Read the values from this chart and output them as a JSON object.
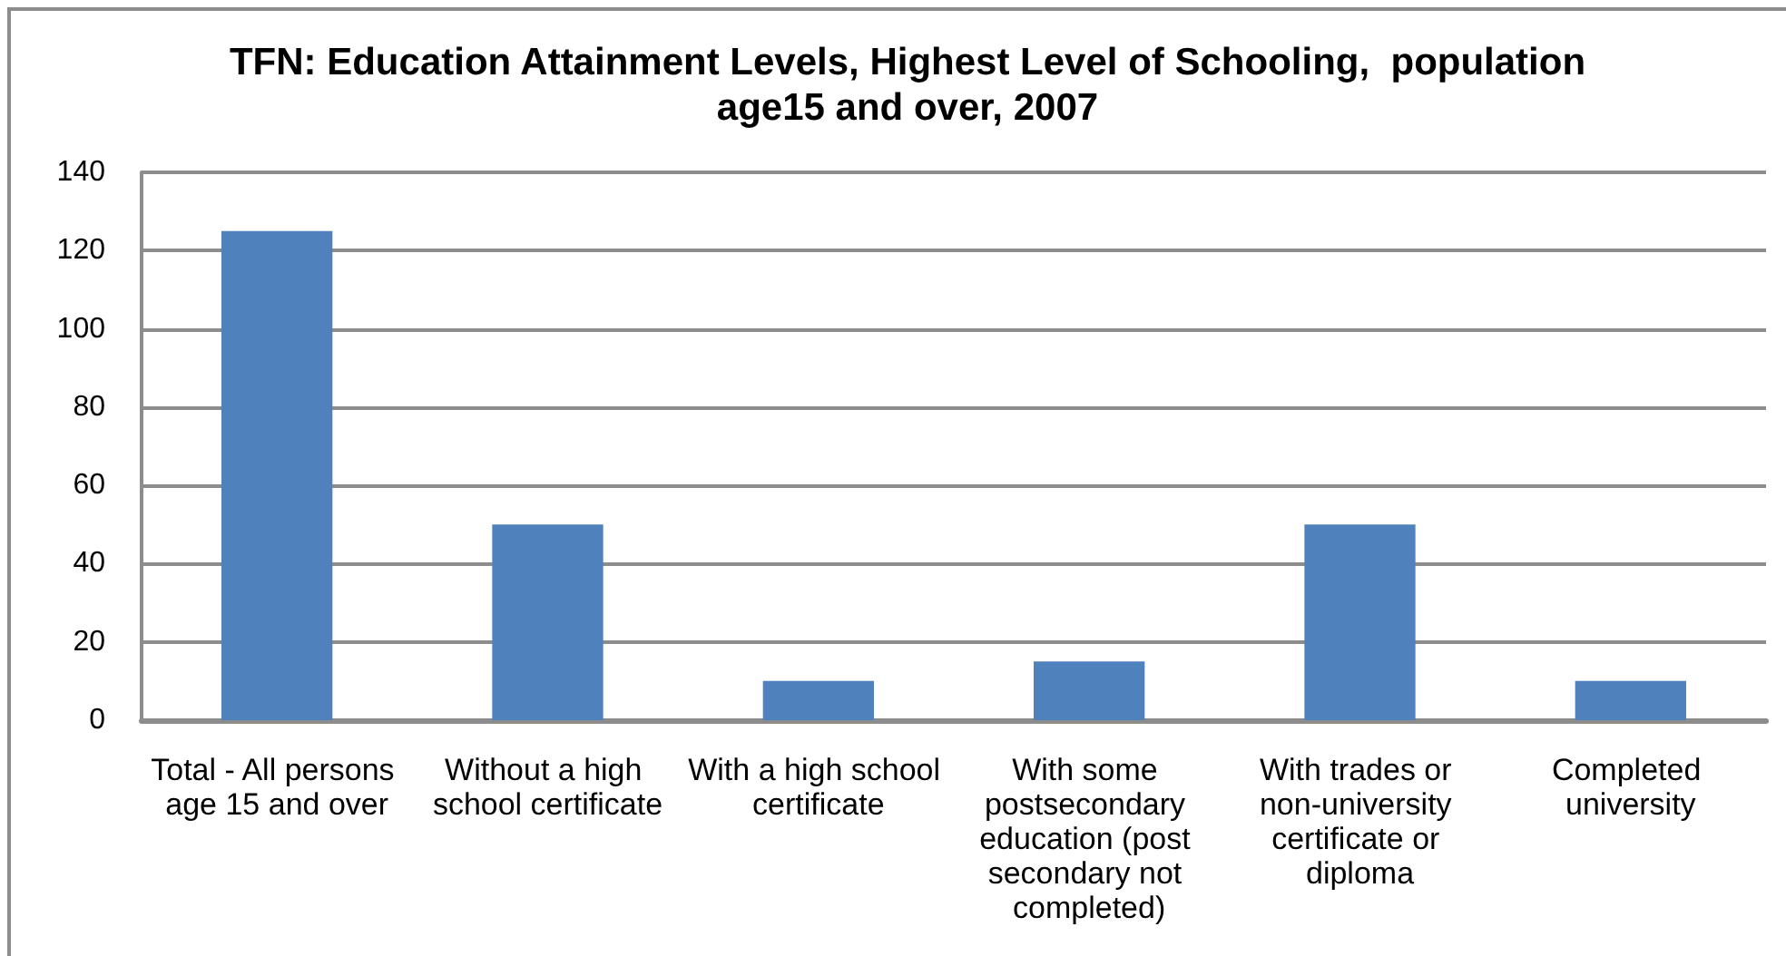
{
  "chart_data": {
    "type": "bar",
    "title": "TFN: Education Attainment Levels, Highest Level of Schooling,  population age15 and over, 2007",
    "categories": [
      "Total - All persons age 15 and over",
      "Without a high school certificate",
      "With a high school certificate",
      "With some postsecondary education (post secondary not completed)",
      "With trades or non-university certificate or diploma",
      "Completed university"
    ],
    "values": [
      125,
      50,
      10,
      15,
      50,
      10
    ],
    "color": "#4f81bd",
    "ylim": [
      0,
      140
    ],
    "yticks": [
      0,
      20,
      40,
      60,
      80,
      100,
      120,
      140
    ],
    "grid": "y"
  }
}
